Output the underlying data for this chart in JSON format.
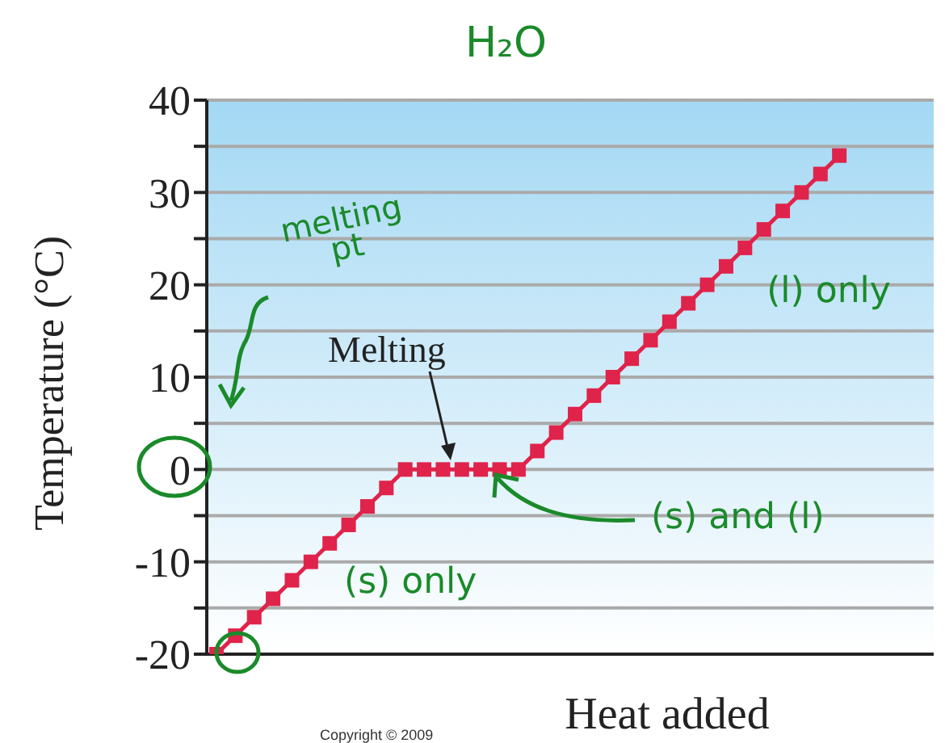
{
  "chart_data": {
    "type": "line",
    "title": "H₂O",
    "xlabel": "Heat added",
    "ylabel": "Temperature (°C)",
    "categories": [
      null,
      null,
      null,
      null,
      null,
      null,
      null,
      null,
      null,
      null,
      null,
      null,
      null,
      null,
      null,
      null,
      null,
      null,
      null,
      null,
      null,
      null,
      null,
      null,
      null,
      null,
      null,
      null,
      null,
      null,
      null,
      null,
      null,
      null,
      null,
      null,
      null,
      null,
      null
    ],
    "series": [
      {
        "color": "#e0234a",
        "values": [
          -20,
          -18,
          -16,
          -14,
          -12,
          -10,
          -8,
          -6,
          -4,
          -2,
          0,
          0,
          0,
          0,
          0,
          0,
          0,
          2,
          4,
          6,
          8,
          10,
          12,
          14,
          16,
          18,
          20,
          22,
          24,
          26,
          28,
          30,
          32,
          34,
          null,
          null,
          null,
          null,
          null
        ]
      }
    ],
    "ylim": [
      -20,
      40
    ],
    "yticks": [
      -20,
      {
        "value": -15,
        "label": null
      },
      -10,
      {
        "value": -5,
        "label": null
      },
      0,
      {
        "value": 5,
        "label": null
      },
      10,
      {
        "value": 15,
        "label": null
      },
      20,
      {
        "value": 25,
        "label": null
      },
      30,
      {
        "value": 35,
        "label": null
      },
      40
    ],
    "grid": "y",
    "marker": "square",
    "line_style": "solid",
    "tick_labels": "y",
    "annotations": [
      "melting pt",
      "Melting",
      "(l) only",
      "(s) and (l)",
      "(s) only",
      "Copyright © 2009"
    ]
  }
}
